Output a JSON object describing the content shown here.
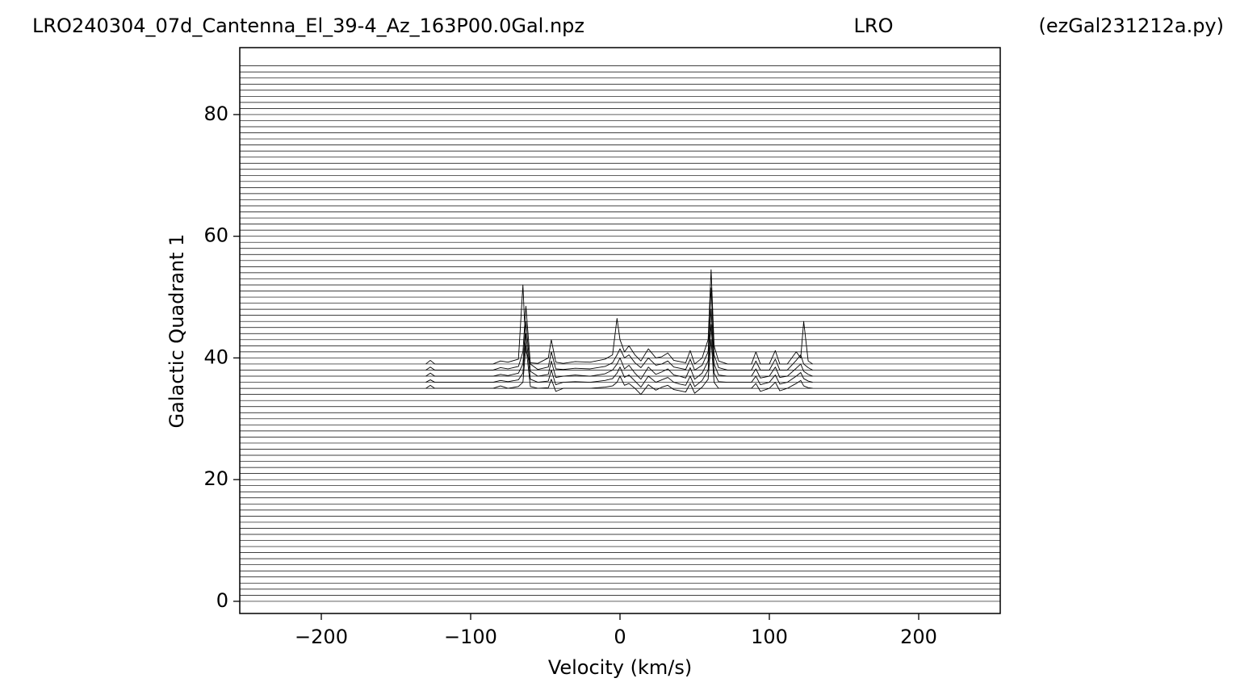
{
  "chart_data": {
    "type": "line",
    "titles": [
      "LRO240304_07d_Cantenna_El_39-4_Az_163P00.0Gal.npz",
      "LRO",
      "(ezGal231212a.py)"
    ],
    "x_label": "Velocity (km/s)",
    "y_label": "Galactic Quadrant 1",
    "xlim": [
      -254.6,
      254.6
    ],
    "ylim": [
      -2,
      91
    ],
    "xticks": [
      {
        "value": -200,
        "label": "−200"
      },
      {
        "value": -100,
        "label": "−100"
      },
      0,
      100,
      200
    ],
    "yticks": [
      0,
      20,
      40,
      60,
      80
    ],
    "color": "#000000",
    "baselines": [
      0,
      1,
      2,
      3,
      4,
      5,
      6,
      7,
      8,
      9,
      10,
      11,
      12,
      13,
      14,
      15,
      16,
      17,
      18,
      19,
      20,
      21,
      22,
      23,
      24,
      25,
      26,
      27,
      28,
      29,
      30,
      31,
      32,
      33,
      34,
      35,
      36,
      37,
      38,
      39,
      40,
      41,
      42,
      43,
      44,
      45,
      46,
      47,
      48,
      49,
      50,
      51,
      52,
      53,
      54,
      55,
      56,
      57,
      58,
      59,
      60,
      61,
      62,
      63,
      64,
      65,
      66,
      67,
      68,
      69,
      70,
      71,
      72,
      73,
      74,
      75,
      76,
      77,
      78,
      79,
      80,
      81,
      82,
      83,
      84,
      85,
      86,
      87,
      88
    ],
    "x": [
      -130,
      -127,
      -124,
      -118,
      -85,
      -80,
      -75,
      -68,
      -65,
      -63,
      -60,
      -55,
      -48,
      -46,
      -43,
      -38,
      -30,
      -20,
      -10,
      -5,
      -2,
      0,
      3,
      6,
      10,
      14,
      19,
      24,
      28,
      32,
      36,
      40,
      44,
      47,
      50,
      55,
      59,
      61,
      63,
      66,
      72,
      88,
      91,
      94,
      100,
      104,
      107,
      112,
      118,
      121,
      123,
      126,
      129
    ],
    "series": [
      {
        "color": "#000000",
        "values": [
          35,
          35.5,
          35,
          35,
          35,
          35.4,
          35,
          35.3,
          36,
          42,
          35.3,
          35,
          35.1,
          36.5,
          34.5,
          35,
          35,
          35,
          35.2,
          35.4,
          36,
          37,
          35.5,
          35.8,
          35,
          34,
          35.6,
          34.7,
          35.2,
          35.5,
          34.8,
          34.6,
          34.4,
          35.8,
          34.2,
          35.2,
          36.5,
          43,
          36,
          35,
          35,
          35,
          35.8,
          34.5,
          35,
          36,
          34.6,
          35,
          35.8,
          36.3,
          35.4,
          35.1,
          35
        ]
      },
      {
        "color": "#000000",
        "values": [
          36,
          36.4,
          36,
          36,
          36,
          36.3,
          36.1,
          36.4,
          37.5,
          44,
          36.5,
          36,
          36.2,
          38,
          35.6,
          36,
          36.1,
          36,
          36.3,
          36.6,
          37.5,
          38.5,
          36.8,
          37.2,
          36.2,
          35.2,
          37,
          36,
          36.4,
          36.8,
          36,
          35.7,
          35.5,
          37,
          35.3,
          36.3,
          38,
          45.5,
          37.5,
          36.1,
          36,
          36,
          37,
          35.6,
          36,
          37.2,
          35.7,
          36,
          37,
          37.6,
          36.6,
          36.2,
          36
        ]
      },
      {
        "color": "#000000",
        "values": [
          37,
          37.5,
          37,
          37,
          37,
          37.3,
          37.1,
          37.5,
          39,
          46,
          37.8,
          37,
          37.3,
          39.5,
          36.8,
          37,
          37.2,
          37,
          37.4,
          38,
          39,
          40,
          38.2,
          38.8,
          37.5,
          36.5,
          38.5,
          37.3,
          37.7,
          38.2,
          37.2,
          37,
          36.7,
          38.4,
          36.5,
          37.5,
          39.5,
          48,
          39,
          37.2,
          37,
          37,
          38.2,
          36.7,
          37,
          38.5,
          36.8,
          37,
          38.3,
          39,
          37.8,
          37.3,
          37
        ]
      },
      {
        "color": "#000000",
        "values": [
          38,
          38.5,
          38,
          38,
          38,
          38.4,
          38.2,
          38.6,
          41,
          48.5,
          39,
          38.1,
          38.5,
          41,
          38.2,
          38.1,
          38.3,
          38.2,
          38.6,
          39.2,
          40.5,
          41.5,
          40,
          40.5,
          39.2,
          38.4,
          40,
          38.8,
          39,
          39.5,
          38.5,
          38.3,
          38.1,
          39.8,
          38,
          38.8,
          41,
          51.5,
          40.5,
          38.4,
          38,
          38,
          39.5,
          38,
          38,
          39.8,
          38,
          38,
          39.6,
          40.5,
          39,
          38.4,
          38
        ]
      },
      {
        "color": "#000000",
        "values": [
          39,
          39.6,
          39,
          39,
          39,
          39.5,
          39.3,
          39.8,
          52,
          41,
          39.2,
          39.1,
          40,
          43,
          39.3,
          39.1,
          39.4,
          39.3,
          39.8,
          40.5,
          46.5,
          43,
          41,
          42,
          40.5,
          39.5,
          41.5,
          40,
          40.2,
          40.8,
          39.6,
          39.4,
          39.2,
          41.2,
          39,
          40,
          43,
          54.5,
          42,
          39.5,
          39,
          39,
          41,
          39,
          39,
          41.2,
          39,
          39,
          41,
          40,
          46,
          39.5,
          39
        ]
      }
    ]
  }
}
